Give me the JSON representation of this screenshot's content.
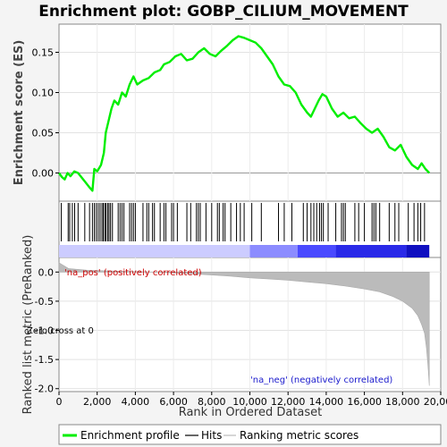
{
  "chart_data": {
    "type": "line",
    "title": "Enrichment plot: GOBP_CILIUM_MOVEMENT",
    "xlabel": "Rank in Ordered Dataset",
    "es_ylabel": "Enrichment score (ES)",
    "metric_ylabel": "Ranked list metric (PreRanked)",
    "xlim": [
      0,
      20000
    ],
    "x_ticks": [
      0,
      2000,
      4000,
      6000,
      8000,
      10000,
      12000,
      14000,
      16000,
      18000,
      20000
    ],
    "x_tick_labels": [
      "0",
      "2,000",
      "4,000",
      "6,000",
      "8,000",
      "10,000",
      "12,000",
      "14,000",
      "16,000",
      "18,000",
      "20,000"
    ],
    "es_ylim": [
      -0.035,
      0.185
    ],
    "es_ticks": [
      0.0,
      0.05,
      0.1,
      0.15
    ],
    "es_tick_labels": [
      "0.00",
      "0.05",
      "0.10",
      "0.15"
    ],
    "metric_ylim": [
      -2.05,
      0.25
    ],
    "metric_ticks": [
      0.0,
      -0.5,
      -1.0,
      -1.5,
      -2.0
    ],
    "metric_tick_labels": [
      "0.0",
      "-0.5",
      "-1.0",
      "-1.5",
      "-2.0"
    ],
    "pos_label": "'na_pos' (positively correlated)",
    "neg_label": "'na_neg' (negatively correlated)",
    "zero_label": "Zero cross at 0",
    "legend": [
      "Enrichment profile",
      "Hits",
      "Ranking metric scores"
    ],
    "colors": {
      "profile": "#00ee00",
      "hits": "#000000",
      "metric": "#bbbbbb",
      "zero_line": "#999999",
      "pos_bar": "#ccccff",
      "neg_bar": "#1f1fcc"
    },
    "es_profile": [
      [
        0,
        0.0
      ],
      [
        150,
        -0.005
      ],
      [
        300,
        -0.008
      ],
      [
        450,
        0.0
      ],
      [
        600,
        -0.004
      ],
      [
        800,
        0.002
      ],
      [
        1000,
        0.0
      ],
      [
        1200,
        -0.006
      ],
      [
        1400,
        -0.012
      ],
      [
        1600,
        -0.018
      ],
      [
        1750,
        -0.022
      ],
      [
        1850,
        0.005
      ],
      [
        2000,
        0.002
      ],
      [
        2200,
        0.01
      ],
      [
        2350,
        0.025
      ],
      [
        2450,
        0.05
      ],
      [
        2600,
        0.065
      ],
      [
        2750,
        0.08
      ],
      [
        2900,
        0.09
      ],
      [
        3100,
        0.085
      ],
      [
        3300,
        0.1
      ],
      [
        3500,
        0.095
      ],
      [
        3700,
        0.11
      ],
      [
        3900,
        0.12
      ],
      [
        4100,
        0.11
      ],
      [
        4400,
        0.115
      ],
      [
        4700,
        0.118
      ],
      [
        5000,
        0.125
      ],
      [
        5300,
        0.128
      ],
      [
        5500,
        0.135
      ],
      [
        5800,
        0.138
      ],
      [
        6100,
        0.145
      ],
      [
        6400,
        0.148
      ],
      [
        6700,
        0.14
      ],
      [
        7000,
        0.142
      ],
      [
        7300,
        0.15
      ],
      [
        7600,
        0.155
      ],
      [
        7900,
        0.148
      ],
      [
        8200,
        0.145
      ],
      [
        8500,
        0.152
      ],
      [
        8800,
        0.158
      ],
      [
        9100,
        0.165
      ],
      [
        9400,
        0.17
      ],
      [
        9700,
        0.168
      ],
      [
        10000,
        0.165
      ],
      [
        10300,
        0.162
      ],
      [
        10600,
        0.155
      ],
      [
        10900,
        0.145
      ],
      [
        11200,
        0.135
      ],
      [
        11500,
        0.12
      ],
      [
        11800,
        0.11
      ],
      [
        12100,
        0.108
      ],
      [
        12400,
        0.1
      ],
      [
        12700,
        0.085
      ],
      [
        13000,
        0.075
      ],
      [
        13200,
        0.07
      ],
      [
        13400,
        0.08
      ],
      [
        13600,
        0.09
      ],
      [
        13800,
        0.098
      ],
      [
        14000,
        0.095
      ],
      [
        14300,
        0.08
      ],
      [
        14600,
        0.07
      ],
      [
        14900,
        0.075
      ],
      [
        15200,
        0.068
      ],
      [
        15500,
        0.07
      ],
      [
        15800,
        0.062
      ],
      [
        16100,
        0.055
      ],
      [
        16400,
        0.05
      ],
      [
        16700,
        0.055
      ],
      [
        17000,
        0.045
      ],
      [
        17300,
        0.032
      ],
      [
        17600,
        0.028
      ],
      [
        17900,
        0.035
      ],
      [
        18200,
        0.02
      ],
      [
        18500,
        0.01
      ],
      [
        18800,
        0.005
      ],
      [
        19000,
        0.012
      ],
      [
        19200,
        0.005
      ],
      [
        19400,
        0.0
      ]
    ],
    "hits": [
      120,
      480,
      560,
      700,
      820,
      1000,
      1350,
      1600,
      1750,
      1850,
      1950,
      2050,
      2150,
      2250,
      2320,
      2400,
      2460,
      2550,
      2620,
      2700,
      2800,
      3100,
      3200,
      3300,
      3400,
      3700,
      3800,
      3900,
      4000,
      4400,
      4600,
      4700,
      4900,
      5000,
      5300,
      5500,
      5600,
      5900,
      6000,
      6200,
      6700,
      6900,
      7200,
      7300,
      7400,
      7700,
      8000,
      8300,
      8400,
      8600,
      8700,
      9000,
      9300,
      9500,
      9700,
      10100,
      10600,
      11500,
      11800,
      12200,
      12800,
      13000,
      13200,
      13350,
      13500,
      13650,
      13750,
      13850,
      14100,
      14500,
      14800,
      14900,
      15000,
      15500,
      15700,
      16000,
      16400,
      16500,
      16600,
      16800,
      17300,
      17600,
      17800,
      18300,
      18600,
      18800,
      18950,
      19150
    ],
    "metric_curve": [
      [
        0,
        0.16
      ],
      [
        500,
        0.06
      ],
      [
        1500,
        0.03
      ],
      [
        3000,
        0.015
      ],
      [
        5000,
        0.0
      ],
      [
        7000,
        -0.03
      ],
      [
        9000,
        -0.07
      ],
      [
        10000,
        -0.1
      ],
      [
        11000,
        -0.12
      ],
      [
        12000,
        -0.14
      ],
      [
        13000,
        -0.17
      ],
      [
        14000,
        -0.2
      ],
      [
        15000,
        -0.24
      ],
      [
        16000,
        -0.29
      ],
      [
        16800,
        -0.34
      ],
      [
        17500,
        -0.42
      ],
      [
        18000,
        -0.5
      ],
      [
        18500,
        -0.62
      ],
      [
        18800,
        -0.75
      ],
      [
        19000,
        -0.9
      ],
      [
        19150,
        -1.05
      ],
      [
        19250,
        -1.3
      ],
      [
        19330,
        -1.6
      ],
      [
        19380,
        -1.85
      ],
      [
        19400,
        -1.95
      ]
    ],
    "heat_bar_segments": [
      [
        0,
        10000,
        "#ccccff"
      ],
      [
        10000,
        12500,
        "#8c8cff"
      ],
      [
        12500,
        14500,
        "#4a4aff"
      ],
      [
        14500,
        18200,
        "#2a2ae8"
      ],
      [
        18200,
        19400,
        "#1010c0"
      ]
    ]
  }
}
